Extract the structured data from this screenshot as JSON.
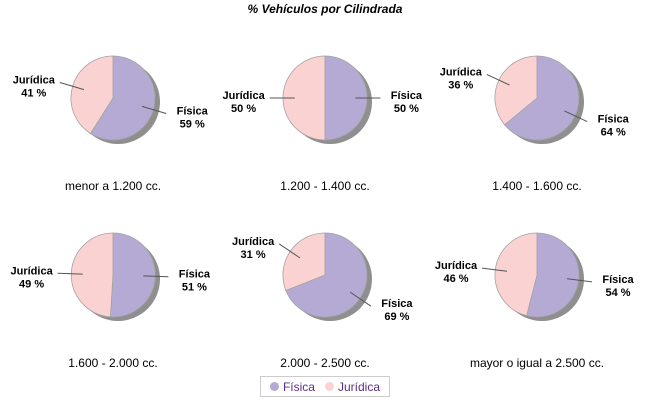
{
  "title": "% Vehículos por Cilindrada",
  "legend": {
    "items": [
      {
        "label": "Física",
        "color": "#b5aad4"
      },
      {
        "label": "Jurídica",
        "color": "#fbd2d2"
      }
    ],
    "text_color": "#5d2d87",
    "border_color": "#cccccc"
  },
  "shadow_color": "#8f8f8f",
  "leader_line_color": "#555555",
  "slice_outline_color": "#a3a3a3",
  "chart_data": [
    {
      "type": "pie",
      "title": "menor a 1.200 cc.",
      "slices": [
        {
          "label": "Física",
          "value": 59,
          "display": "59 %"
        },
        {
          "label": "Jurídica",
          "value": 41,
          "display": "41 %"
        }
      ]
    },
    {
      "type": "pie",
      "title": "1.200 - 1.400 cc.",
      "slices": [
        {
          "label": "Física",
          "value": 50,
          "display": "50 %"
        },
        {
          "label": "Jurídica",
          "value": 50,
          "display": "50 %"
        }
      ]
    },
    {
      "type": "pie",
      "title": "1.400 - 1.600 cc.",
      "slices": [
        {
          "label": "Física",
          "value": 64,
          "display": "64 %"
        },
        {
          "label": "Jurídica",
          "value": 36,
          "display": "36 %"
        }
      ]
    },
    {
      "type": "pie",
      "title": "1.600 - 2.000 cc.",
      "slices": [
        {
          "label": "Física",
          "value": 51,
          "display": "51 %"
        },
        {
          "label": "Jurídica",
          "value": 49,
          "display": "49 %"
        }
      ]
    },
    {
      "type": "pie",
      "title": "2.000 - 2.500 cc.",
      "slices": [
        {
          "label": "Física",
          "value": 69,
          "display": "69 %"
        },
        {
          "label": "Jurídica",
          "value": 31,
          "display": "31 %"
        }
      ]
    },
    {
      "type": "pie",
      "title": "mayor o igual a 2.500 cc.",
      "slices": [
        {
          "label": "Física",
          "value": 54,
          "display": "54 %"
        },
        {
          "label": "Jurídica",
          "value": 46,
          "display": "46 %"
        }
      ]
    }
  ]
}
